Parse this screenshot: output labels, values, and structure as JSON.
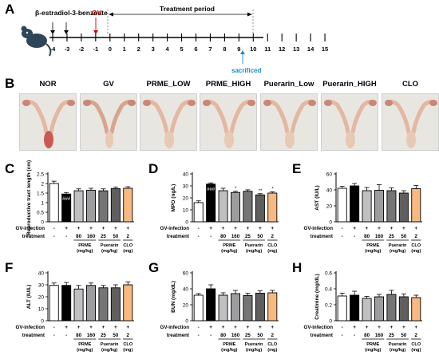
{
  "panels": {
    "A": {
      "letter": "A",
      "label_estradiol": "β-estradiol-3-benzoate",
      "label_gv": "GV",
      "label_treatment": "Treatment period",
      "label_sacrificed": "sacrificed",
      "ticks": [
        "-4",
        "-3",
        "-2",
        "-1",
        "0",
        "1",
        "2",
        "3",
        "4",
        "5",
        "6",
        "7",
        "8",
        "9",
        "10",
        "11",
        "12",
        "13",
        "14",
        "15"
      ]
    },
    "B": {
      "letter": "B",
      "groups": [
        "NOR",
        "GV",
        "PRME_LOW",
        "PRME_HIGH",
        "Puerarin_Low",
        "Puerarin_HIGH",
        "CLO"
      ]
    }
  },
  "table_labels": {
    "gv_infection": "GV-infection",
    "treatment": "treatment",
    "gv_signs": [
      "-",
      "+",
      "+",
      "+",
      "+",
      "+",
      "+"
    ],
    "doses": [
      "-",
      "-",
      "80",
      "160",
      "25",
      "50",
      "2"
    ],
    "group_prme": [
      "PRME",
      "(mg/kg)"
    ],
    "group_puerarin": [
      "Puerarin",
      "(mg/kg)"
    ],
    "group_clo": [
      "CLO",
      "(mg)"
    ]
  },
  "colors": {
    "bars": [
      "#ffffff",
      "#000000",
      "#c0c0c0",
      "#9d9d9f",
      "#757575",
      "#5f5f5f",
      "#f7b97f"
    ],
    "gv_red": "#cc0000",
    "sacrificed_blue": "#1e88c8"
  },
  "chart_data": [
    {
      "id": "C",
      "type": "bar",
      "letter": "C",
      "ylabel": "Reproductive tract length (cm)",
      "ylim": [
        0,
        2.5
      ],
      "ticks": [
        0,
        0.5,
        1.0,
        1.5,
        2.0,
        2.5
      ],
      "values": [
        2.0,
        1.45,
        1.62,
        1.65,
        1.62,
        1.73,
        1.75
      ],
      "errors": [
        0.12,
        0.08,
        0.1,
        0.1,
        0.1,
        0.08,
        0.08
      ],
      "annotations": [
        "",
        "###",
        "",
        "",
        "",
        "",
        ""
      ]
    },
    {
      "id": "D",
      "type": "bar",
      "letter": "D",
      "ylabel": "MPO (ng/L)",
      "ylim": [
        0,
        40
      ],
      "ticks": [
        0,
        10,
        20,
        30,
        40
      ],
      "values": [
        16,
        31.5,
        26,
        24.5,
        25.5,
        22.5,
        24
      ],
      "errors": [
        1.5,
        1,
        2,
        1,
        1.2,
        1,
        1
      ],
      "annotations": [
        "",
        "###",
        "",
        "*",
        "",
        "**",
        "*"
      ]
    },
    {
      "id": "E",
      "type": "bar",
      "letter": "E",
      "ylabel": "AST (IU/L)",
      "ylim": [
        0,
        60
      ],
      "ticks": [
        0,
        20,
        40,
        60
      ],
      "values": [
        42,
        45,
        39,
        39.5,
        39,
        36,
        41.5
      ],
      "errors": [
        2.5,
        3,
        4,
        7,
        3.5,
        3,
        4
      ],
      "annotations": [
        "",
        "",
        "",
        "",
        "",
        "",
        ""
      ]
    },
    {
      "id": "F",
      "type": "bar",
      "letter": "F",
      "ylabel": "ALT (IU/L)",
      "ylim": [
        0,
        40
      ],
      "ticks": [
        0,
        10,
        20,
        30,
        40
      ],
      "values": [
        29.5,
        29.5,
        26.5,
        29.5,
        27.5,
        27.5,
        30
      ],
      "errors": [
        2,
        2.5,
        3,
        2,
        2,
        2.5,
        2.5
      ],
      "annotations": [
        "",
        "",
        "",
        "",
        "",
        "",
        ""
      ]
    },
    {
      "id": "G",
      "type": "bar",
      "letter": "G",
      "ylabel": "BUN (mg/dL)",
      "ylim": [
        0,
        60
      ],
      "ticks": [
        0,
        20,
        40,
        60
      ],
      "values": [
        32,
        40,
        32,
        34,
        31.5,
        34.5,
        35
      ],
      "errors": [
        2,
        5,
        3,
        4,
        3,
        3,
        3
      ],
      "annotations": [
        "",
        "",
        "",
        "",
        "",
        "",
        ""
      ]
    },
    {
      "id": "H",
      "type": "bar",
      "letter": "H",
      "ylabel": "Creatinine (mg/dL)",
      "ylim": [
        0,
        0.6
      ],
      "ticks": [
        0,
        0.2,
        0.4,
        0.6
      ],
      "values": [
        0.31,
        0.32,
        0.28,
        0.3,
        0.33,
        0.3,
        0.29
      ],
      "errors": [
        0.035,
        0.05,
        0.025,
        0.03,
        0.05,
        0.035,
        0.03
      ],
      "annotations": [
        "",
        "",
        "",
        "",
        "",
        "",
        ""
      ]
    }
  ]
}
